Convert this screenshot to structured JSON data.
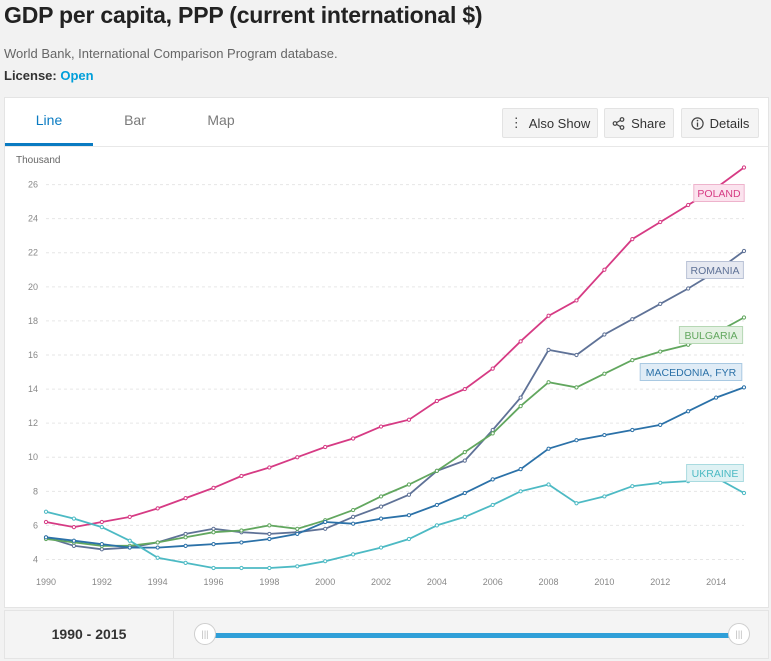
{
  "header": {
    "title": "GDP per capita, PPP (current international $)",
    "source": "World Bank, International Comparison Program database.",
    "license_label": "License:",
    "license_value": "Open"
  },
  "tabs": [
    {
      "label": "Line",
      "active": true
    },
    {
      "label": "Bar",
      "active": false
    },
    {
      "label": "Map",
      "active": false
    }
  ],
  "actions": {
    "also_show": "Also Show",
    "share": "Share",
    "details": "Details"
  },
  "footer": {
    "range_label": "1990 - 2015",
    "range_start": 1990,
    "range_end": 2015
  },
  "chart_data": {
    "type": "line",
    "ylabel": "Thousand",
    "ylim": [
      3.5,
      27.5
    ],
    "xlim": [
      1990,
      2015
    ],
    "yticks": [
      4,
      6,
      8,
      10,
      12,
      14,
      16,
      18,
      20,
      22,
      24,
      26
    ],
    "xticks": [
      1990,
      1992,
      1994,
      1996,
      1998,
      2000,
      2002,
      2004,
      2006,
      2008,
      2010,
      2012,
      2014
    ],
    "grid": true,
    "x": [
      1990,
      1991,
      1992,
      1993,
      1994,
      1995,
      1996,
      1997,
      1998,
      1999,
      2000,
      2001,
      2002,
      2003,
      2004,
      2005,
      2006,
      2007,
      2008,
      2009,
      2010,
      2011,
      2012,
      2013,
      2014,
      2015
    ],
    "series": [
      {
        "name": "POLAND",
        "color": "#d63b84",
        "label_bg": "#fbe3ee",
        "label_border": "#eeb3cc",
        "values": [
          6.2,
          5.9,
          6.2,
          6.5,
          7.0,
          7.6,
          8.2,
          8.9,
          9.4,
          10.0,
          10.6,
          11.1,
          11.8,
          12.2,
          13.3,
          14.0,
          15.2,
          16.8,
          18.3,
          19.2,
          21.0,
          22.8,
          23.8,
          24.8,
          25.8,
          27.0
        ]
      },
      {
        "name": "ROMANIA",
        "color": "#5f7297",
        "label_bg": "#e6e9f1",
        "label_border": "#b9c2d6",
        "values": [
          5.3,
          4.8,
          4.6,
          4.7,
          5.0,
          5.5,
          5.8,
          5.6,
          5.5,
          5.6,
          5.8,
          6.5,
          7.1,
          7.8,
          9.2,
          9.8,
          11.6,
          13.5,
          16.3,
          16.0,
          17.2,
          18.1,
          19.0,
          19.9,
          20.9,
          22.1
        ]
      },
      {
        "name": "BULGARIA",
        "color": "#62a75f",
        "label_bg": "#e4f1e3",
        "label_border": "#b6d8b4",
        "values": [
          5.2,
          5.0,
          4.8,
          4.8,
          5.0,
          5.3,
          5.6,
          5.7,
          6.0,
          5.8,
          6.3,
          6.9,
          7.7,
          8.4,
          9.2,
          10.3,
          11.4,
          13.0,
          14.4,
          14.1,
          14.9,
          15.7,
          16.2,
          16.6,
          17.3,
          18.2
        ]
      },
      {
        "name": "MACEDONIA, FYR",
        "color": "#2b71a8",
        "label_bg": "#e0ecf6",
        "label_border": "#a9c9e2",
        "values": [
          5.3,
          5.1,
          4.9,
          4.7,
          4.7,
          4.8,
          4.9,
          5.0,
          5.2,
          5.5,
          6.2,
          6.1,
          6.4,
          6.6,
          7.2,
          7.9,
          8.7,
          9.3,
          10.5,
          11.0,
          11.3,
          11.6,
          11.9,
          12.7,
          13.5,
          14.1
        ]
      },
      {
        "name": "UKRAINE",
        "color": "#4dbac4",
        "label_bg": "#dff2f4",
        "label_border": "#a9dbe0",
        "values": [
          6.8,
          6.4,
          5.9,
          5.1,
          4.1,
          3.8,
          3.5,
          3.5,
          3.5,
          3.6,
          3.9,
          4.3,
          4.7,
          5.2,
          6.0,
          6.5,
          7.2,
          8.0,
          8.4,
          7.3,
          7.7,
          8.3,
          8.5,
          8.6,
          8.8,
          7.9
        ]
      }
    ]
  }
}
